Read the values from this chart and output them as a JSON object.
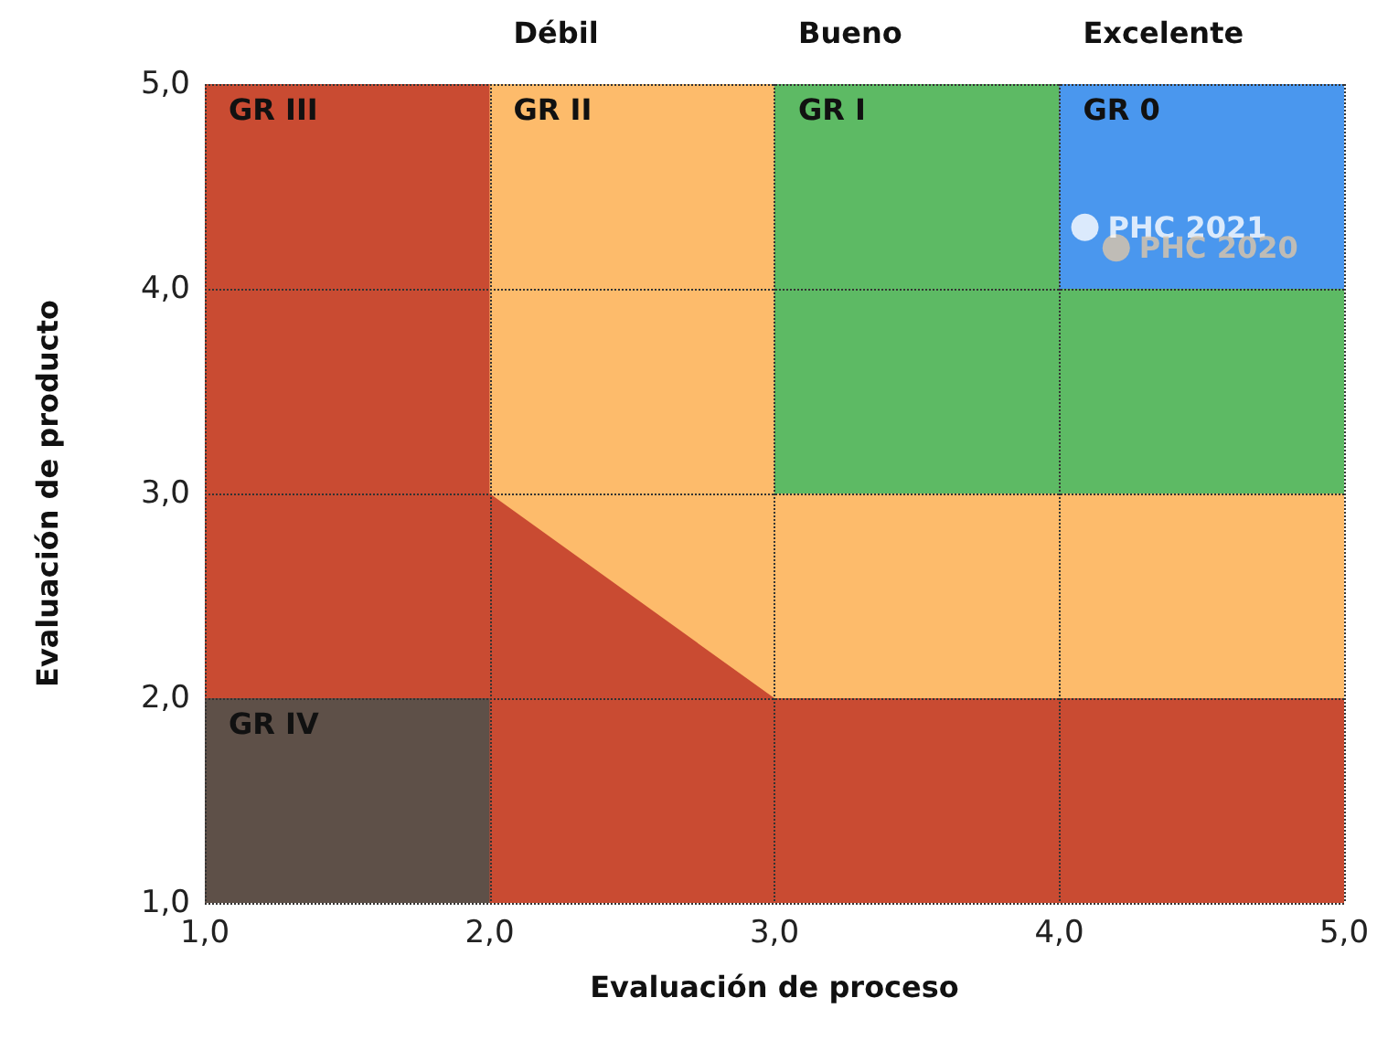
{
  "chart_data": {
    "type": "scatter",
    "xlabel": "Evaluación de proceso",
    "ylabel": "Evaluación de producto",
    "xlim": [
      1,
      5
    ],
    "ylim": [
      1,
      5
    ],
    "xticks": [
      {
        "value": 1,
        "label": "1,0"
      },
      {
        "value": 2,
        "label": "2,0"
      },
      {
        "value": 3,
        "label": "3,0"
      },
      {
        "value": 4,
        "label": "4,0"
      },
      {
        "value": 5,
        "label": "5,0"
      }
    ],
    "yticks": [
      {
        "value": 1,
        "label": "1,0"
      },
      {
        "value": 2,
        "label": "2,0"
      },
      {
        "value": 3,
        "label": "3,0"
      },
      {
        "value": 4,
        "label": "4,0"
      },
      {
        "value": 5,
        "label": "5,0"
      }
    ],
    "grid": true,
    "line_style": "dotted",
    "marker": "circle",
    "legend": false,
    "series": [
      {
        "name": "PHC 2021",
        "color": "#ffffff",
        "x": [
          4.09
        ],
        "values": [
          4.3
        ]
      },
      {
        "name": "PHC 2020",
        "color": "#dcc6a8",
        "x": [
          4.2
        ],
        "values": [
          4.2
        ]
      }
    ],
    "annotations": [
      "Débil",
      "Bueno",
      "Excelente",
      "GR III",
      "GR II",
      "GR I",
      "GR 0",
      "GR IV"
    ]
  }
}
